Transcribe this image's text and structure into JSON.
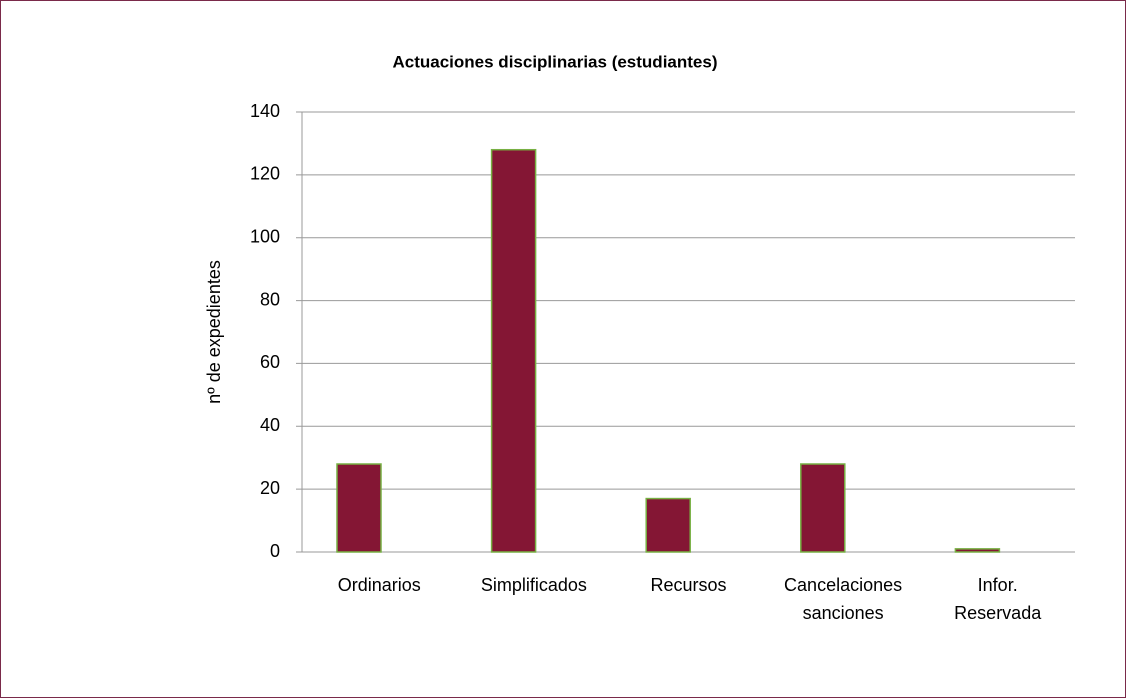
{
  "chart_data": {
    "type": "bar",
    "title": "Actuaciones disciplinarias (estudiantes)",
    "y_label": "nº de expedientes",
    "categories": [
      "Ordinarios",
      "Simplificados",
      "Recursos",
      "Cancelaciones sanciones",
      "Infor. Reservada"
    ],
    "values": [
      28,
      128,
      17,
      28,
      1
    ],
    "color": "#841634",
    "edge_color": "#77b043",
    "ylim": [
      0,
      140
    ],
    "yticks": [
      0,
      20,
      40,
      60,
      80,
      100,
      120,
      140
    ],
    "grid": true
  }
}
